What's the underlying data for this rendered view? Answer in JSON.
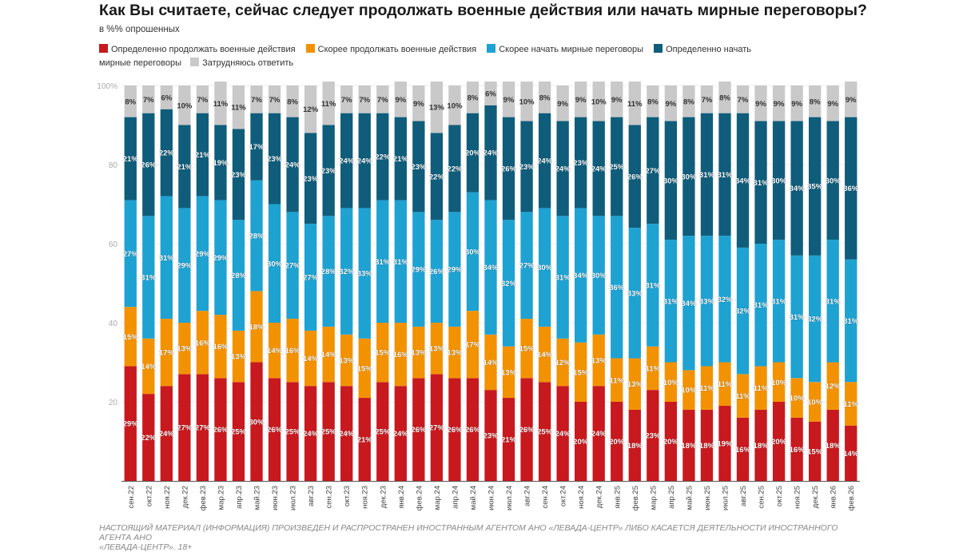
{
  "chart_data": {
    "type": "stacked-bar",
    "title": "Как Вы считаете, сейчас следует продолжать военные действия или начать мирные переговоры?",
    "subtitle": "в %% опрошенных",
    "ylim": [
      0,
      100
    ],
    "yticks": [
      "100%",
      "80",
      "60",
      "40",
      "20"
    ],
    "ytick_values": [
      100,
      80,
      60,
      40,
      20
    ],
    "grid": true,
    "legend_position": "top",
    "categories": [
      "сен.22",
      "окт.22",
      "ноя.22",
      "дек.22",
      "фев.23",
      "мар.23",
      "апр.23",
      "май.23",
      "июн.23",
      "июл.23",
      "авг.23",
      "сен.23",
      "окт.23",
      "ноя.23",
      "дек.23",
      "янв.24",
      "фев.24",
      "мар.24",
      "апр.24",
      "май.24",
      "июн.24",
      "июл.24",
      "авг.24",
      "сен.24",
      "окт.24",
      "ноя.24",
      "дек.24",
      "янв.25",
      "фев.25",
      "мар.25",
      "апр.25",
      "май.25",
      "июн.25",
      "июл.25",
      "авг.25",
      "сен.25",
      "окт.25",
      "ноя.25",
      "дек.25",
      "янв.26",
      "фев.26"
    ],
    "series": [
      {
        "name": "Определенно продолжать военные действия",
        "color": "#c8191e",
        "label_color": "#ffffff",
        "values": [
          29,
          22,
          24,
          27,
          27,
          26,
          25,
          30,
          26,
          25,
          24,
          25,
          24,
          21,
          25,
          24,
          26,
          27,
          26,
          26,
          23,
          21,
          26,
          25,
          24,
          20,
          24,
          20,
          18,
          23,
          20,
          18,
          18,
          19,
          16,
          18,
          20,
          16,
          15,
          18,
          14
        ]
      },
      {
        "name": "Скорее продолжать военные действия",
        "color": "#f39200",
        "label_color": "#ffffff",
        "values": [
          15,
          14,
          17,
          13,
          16,
          16,
          13,
          18,
          14,
          16,
          14,
          14,
          13,
          15,
          15,
          16,
          13,
          13,
          13,
          17,
          14,
          13,
          15,
          14,
          12,
          15,
          13,
          11,
          13,
          11,
          10,
          10,
          11,
          11,
          11,
          11,
          10,
          10,
          10,
          12,
          11
        ]
      },
      {
        "name": "Скорее начать мирные переговоры",
        "color": "#1ea2d2",
        "label_color": "#ffffff",
        "values": [
          27,
          31,
          31,
          29,
          29,
          29,
          28,
          28,
          30,
          27,
          27,
          28,
          32,
          33,
          31,
          31,
          29,
          26,
          29,
          30,
          34,
          32,
          27,
          30,
          31,
          34,
          30,
          36,
          33,
          31,
          31,
          34,
          33,
          32,
          32,
          31,
          31,
          31,
          32,
          31,
          31
        ]
      },
      {
        "name": "Определенно начать мирные переговоры",
        "color": "#0f5d7b",
        "label_color": "#ffffff",
        "values": [
          21,
          26,
          22,
          21,
          21,
          19,
          23,
          17,
          23,
          24,
          23,
          23,
          24,
          24,
          22,
          21,
          23,
          22,
          22,
          20,
          24,
          26,
          23,
          24,
          24,
          23,
          24,
          25,
          26,
          27,
          30,
          30,
          31,
          31,
          34,
          31,
          30,
          34,
          35,
          30,
          36
        ]
      },
      {
        "name": "Затрудняюсь ответить",
        "color": "#c9c9c9",
        "label_color": "#333333",
        "values": [
          8,
          7,
          6,
          10,
          7,
          11,
          11,
          7,
          7,
          8,
          12,
          11,
          7,
          7,
          7,
          9,
          9,
          13,
          10,
          8,
          6,
          9,
          10,
          8,
          9,
          9,
          10,
          9,
          11,
          8,
          9,
          8,
          7,
          8,
          7,
          9,
          9,
          9,
          8,
          9,
          9
        ]
      }
    ]
  },
  "footer": {
    "line1": "НАСТОЯЩИЙ МАТЕРИАЛ (ИНФОРМАЦИЯ) ПРОИЗВЕДЕН И РАСПРОСТРАНЕН ИНОСТРАННЫМ АГЕНТОМ АНО «ЛЕВАДА-ЦЕНТР» ЛИБО КАСАЕТСЯ ДЕЯТЕЛЬНОСТИ ИНОСТРАННОГО АГЕНТА АНО",
    "line2": "«ЛЕВАДА-ЦЕНТР». 18+"
  }
}
